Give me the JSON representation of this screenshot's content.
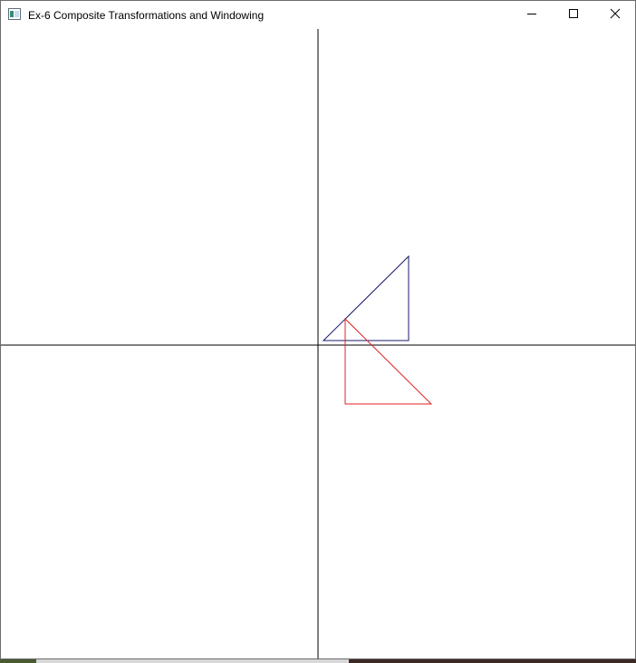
{
  "window": {
    "title": "Ex-6 Composite Transformations and Windowing",
    "icon": "application-window-icon",
    "controls": {
      "minimize": "minimize-icon",
      "maximize": "maximize-icon",
      "close": "close-icon"
    }
  },
  "canvas": {
    "axes_color": "#000000",
    "original_triangle_color": "#1a1a6e",
    "transformed_triangle_color": "#e02020"
  }
}
